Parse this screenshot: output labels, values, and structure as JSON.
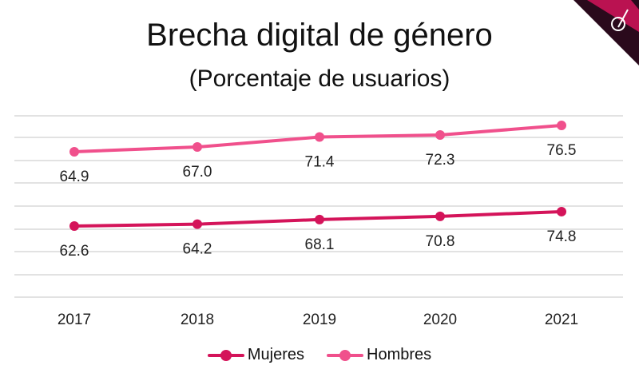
{
  "chart_data": {
    "type": "line",
    "title": "Brecha digital de género",
    "subtitle": "(Porcentaje de usuarios)",
    "categories": [
      "2017",
      "2018",
      "2019",
      "2020",
      "2021"
    ],
    "series": [
      {
        "name": "Mujeres",
        "values": [
          62.6,
          64.2,
          68.1,
          70.8,
          74.8
        ],
        "color": "#d4145a"
      },
      {
        "name": "Hombres",
        "values": [
          64.9,
          67.0,
          71.4,
          72.3,
          76.5
        ],
        "color": "#f0508c"
      }
    ],
    "xlabel": "",
    "ylabel": "",
    "grid": true,
    "legend": "bottom"
  }
}
